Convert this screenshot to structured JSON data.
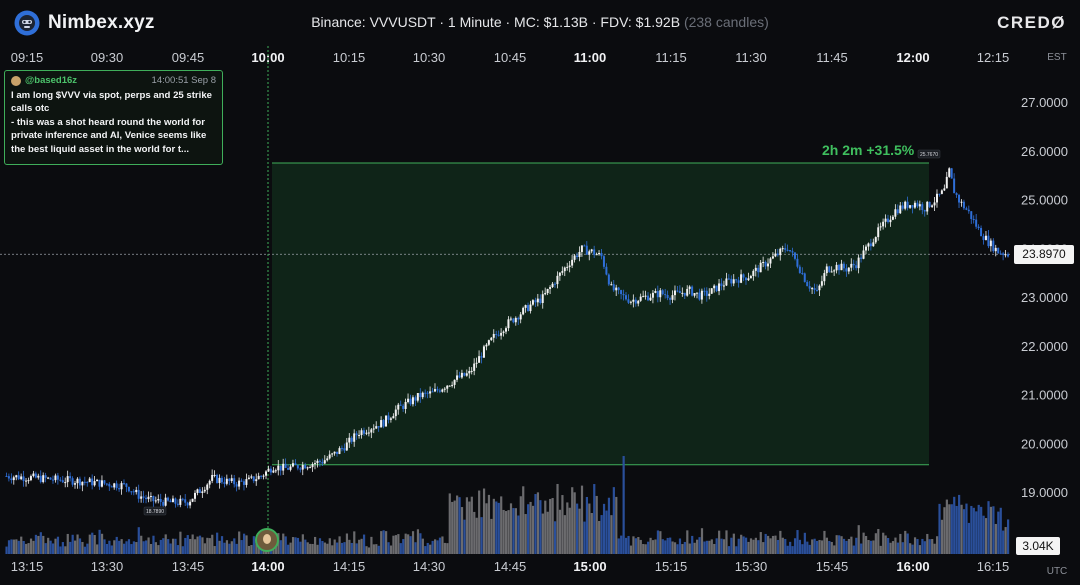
{
  "header": {
    "brand": "Nimbex.xyz",
    "info_main": "Binance: VVVUSDT · 1 Minute · MC: $1.13B · FDV: $1.92B",
    "info_candles": "(238 candles)",
    "right_logo": "CREDØ"
  },
  "tweet": {
    "handle": "@based16z",
    "time": "14:00:51 Sep 8",
    "lines": [
      "I am long $VVV via spot, perps and 25 strike",
      "calls otc",
      "- this was a shot heard round the world for",
      "private inference and AI, Venice seems like",
      "the best liquid asset in the world for t..."
    ]
  },
  "gain_label": "2h 2m  +31.5%",
  "current_price_label": "23.8970",
  "volume_label": "3.04K",
  "tz_top": "EST",
  "tz_bottom": "UTC",
  "colors": {
    "up": "#f2f2f2",
    "down": "#2f6fd8",
    "box": "#3fae5a",
    "volume_grey": "#6b6b6e",
    "volume_blue": "#2a4f9a"
  },
  "chart_data": {
    "type": "candlestick",
    "top_axis_labels": [
      "09:15",
      "09:30",
      "09:45",
      "10:00",
      "10:15",
      "10:30",
      "10:45",
      "11:00",
      "11:15",
      "11:30",
      "11:45",
      "12:00",
      "12:15"
    ],
    "bottom_axis_labels": [
      "13:15",
      "13:30",
      "13:45",
      "14:00",
      "14:15",
      "14:30",
      "14:45",
      "15:00",
      "15:15",
      "15:30",
      "15:45",
      "16:00",
      "16:15"
    ],
    "y_ticks": [
      "27.0000",
      "26.0000",
      "25.0000",
      "24.0000",
      "23.0000",
      "22.0000",
      "21.0000",
      "20.0000",
      "19.0000"
    ],
    "ylim": [
      18.0,
      28.0
    ],
    "current_price": 23.897,
    "annotations": {
      "low_label": "18.7890",
      "high_label": "25.7670",
      "range_low": 19.58,
      "range_high": 25.77
    },
    "close_path": [
      [
        0,
        19.35
      ],
      [
        10,
        19.32
      ],
      [
        20,
        19.28
      ],
      [
        30,
        19.25
      ],
      [
        40,
        19.2
      ],
      [
        50,
        19.15
      ],
      [
        55,
        18.95
      ],
      [
        60,
        18.85
      ],
      [
        65,
        18.82
      ],
      [
        70,
        18.8
      ],
      [
        75,
        18.82
      ],
      [
        80,
        19.05
      ],
      [
        85,
        19.3
      ],
      [
        90,
        19.25
      ],
      [
        95,
        19.2
      ],
      [
        100,
        19.25
      ],
      [
        105,
        19.35
      ],
      [
        110,
        19.55
      ],
      [
        115,
        19.5
      ],
      [
        120,
        19.55
      ],
      [
        125,
        19.6
      ],
      [
        130,
        19.65
      ],
      [
        135,
        19.8
      ],
      [
        140,
        20.0
      ],
      [
        145,
        20.25
      ],
      [
        150,
        20.35
      ],
      [
        155,
        20.45
      ],
      [
        160,
        20.7
      ],
      [
        165,
        20.85
      ],
      [
        170,
        21.0
      ],
      [
        175,
        21.05
      ],
      [
        180,
        21.2
      ],
      [
        185,
        21.35
      ],
      [
        190,
        21.45
      ],
      [
        195,
        21.85
      ],
      [
        200,
        22.2
      ],
      [
        205,
        22.45
      ],
      [
        210,
        22.65
      ],
      [
        215,
        22.85
      ],
      [
        220,
        23.0
      ],
      [
        225,
        23.35
      ],
      [
        228,
        23.55
      ],
      [
        232,
        23.8
      ],
      [
        236,
        24.0
      ],
      [
        240,
        23.95
      ],
      [
        244,
        23.85
      ],
      [
        248,
        23.2
      ],
      [
        252,
        23.05
      ],
      [
        256,
        22.95
      ],
      [
        260,
        23.0
      ],
      [
        264,
        23.05
      ],
      [
        268,
        23.1
      ],
      [
        272,
        23.05
      ],
      [
        276,
        23.1
      ],
      [
        280,
        23.15
      ],
      [
        284,
        23.05
      ],
      [
        288,
        23.1
      ],
      [
        292,
        23.25
      ],
      [
        296,
        23.35
      ],
      [
        300,
        23.4
      ],
      [
        304,
        23.45
      ],
      [
        308,
        23.6
      ],
      [
        312,
        23.75
      ],
      [
        316,
        23.9
      ],
      [
        320,
        24.05
      ],
      [
        324,
        23.7
      ],
      [
        328,
        23.3
      ],
      [
        332,
        23.1
      ],
      [
        336,
        23.6
      ],
      [
        340,
        23.65
      ],
      [
        344,
        23.6
      ],
      [
        348,
        23.7
      ],
      [
        352,
        24.0
      ],
      [
        356,
        24.3
      ],
      [
        360,
        24.55
      ],
      [
        364,
        24.8
      ],
      [
        368,
        24.9
      ],
      [
        372,
        24.95
      ],
      [
        376,
        24.85
      ],
      [
        380,
        25.0
      ],
      [
        384,
        25.2
      ],
      [
        386,
        25.6
      ],
      [
        388,
        25.2
      ],
      [
        390,
        25.0
      ],
      [
        394,
        24.75
      ],
      [
        398,
        24.4
      ],
      [
        402,
        24.15
      ],
      [
        406,
        23.95
      ],
      [
        410,
        23.9
      ]
    ]
  }
}
